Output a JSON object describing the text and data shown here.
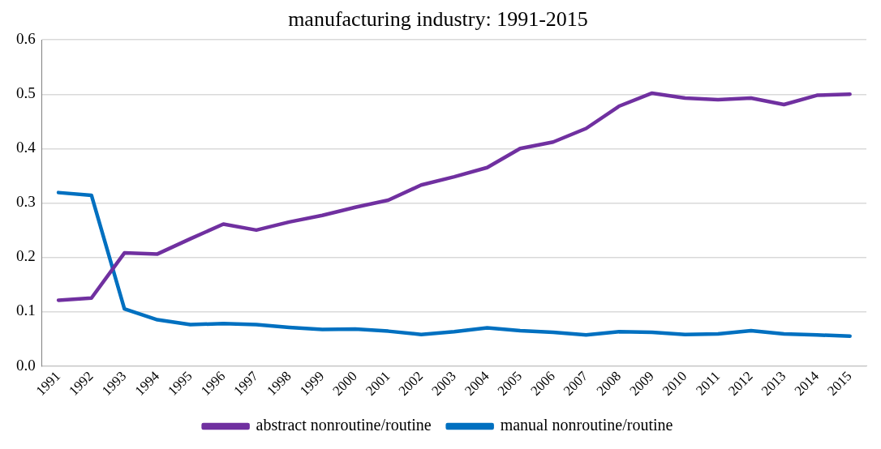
{
  "chart_data": {
    "type": "line",
    "title": "manufacturing industry: 1991-2015",
    "categories": [
      "1991",
      "1992",
      "1993",
      "1994",
      "1995",
      "1996",
      "1997",
      "1998",
      "1999",
      "2000",
      "2001",
      "2002",
      "2003",
      "2004",
      "2005",
      "2006",
      "2007",
      "2008",
      "2009",
      "2010",
      "2011",
      "2012",
      "2013",
      "2014",
      "2015"
    ],
    "series": [
      {
        "name": "abstract nonroutine/routine",
        "color": "#7030a0",
        "values": [
          0.121,
          0.125,
          0.208,
          0.206,
          0.234,
          0.261,
          0.25,
          0.265,
          0.277,
          0.292,
          0.305,
          0.333,
          0.348,
          0.365,
          0.4,
          0.412,
          0.437,
          0.478,
          0.502,
          0.493,
          0.49,
          0.493,
          0.481,
          0.498,
          0.5
        ]
      },
      {
        "name": "manual nonroutine/routine",
        "color": "#0070c0",
        "values": [
          0.319,
          0.314,
          0.105,
          0.085,
          0.076,
          0.078,
          0.076,
          0.071,
          0.067,
          0.068,
          0.064,
          0.058,
          0.063,
          0.07,
          0.065,
          0.062,
          0.057,
          0.063,
          0.062,
          0.058,
          0.059,
          0.065,
          0.059,
          0.057,
          0.055
        ]
      }
    ],
    "ylim": [
      0,
      0.6
    ],
    "yticks": [
      {
        "value": 0,
        "label": "0.0"
      },
      {
        "value": 0.1,
        "label": "0.1"
      },
      {
        "value": 0.2,
        "label": "0.2"
      },
      {
        "value": 0.3,
        "label": "0.3"
      },
      {
        "value": 0.4,
        "label": "0.4"
      },
      {
        "value": 0.5,
        "label": "0.5"
      },
      {
        "value": 0.6,
        "label": "0.6"
      }
    ],
    "grid": "y",
    "legend": "bottom",
    "marker": "none"
  }
}
